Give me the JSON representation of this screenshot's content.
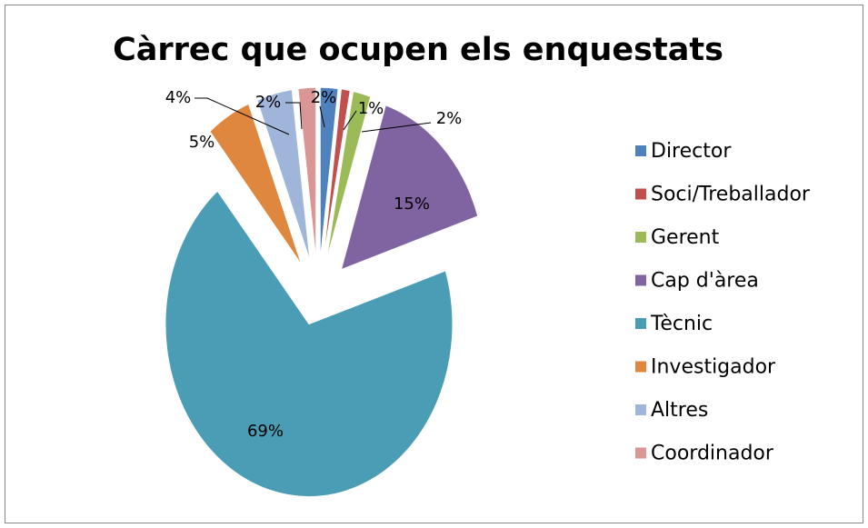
{
  "chart_data": {
    "type": "pie",
    "title": "Càrrec que ocupen els enquestats",
    "categories": [
      "Director",
      "Soci/Treballador",
      "Gerent",
      "Cap d'àrea",
      "Tècnic",
      "Investigador",
      "Altres",
      "Coordinador"
    ],
    "values": [
      2,
      1,
      2,
      15,
      69,
      5,
      4,
      2
    ],
    "value_labels": [
      "2%",
      "1%",
      "2%",
      "15%",
      "69%",
      "5%",
      "4%",
      "2%"
    ],
    "colors": [
      "#4f81bd",
      "#c0504d",
      "#9bbb59",
      "#8064a2",
      "#4a9db4",
      "#e0873f",
      "#9fb5da",
      "#d99694"
    ],
    "legend": "right"
  }
}
